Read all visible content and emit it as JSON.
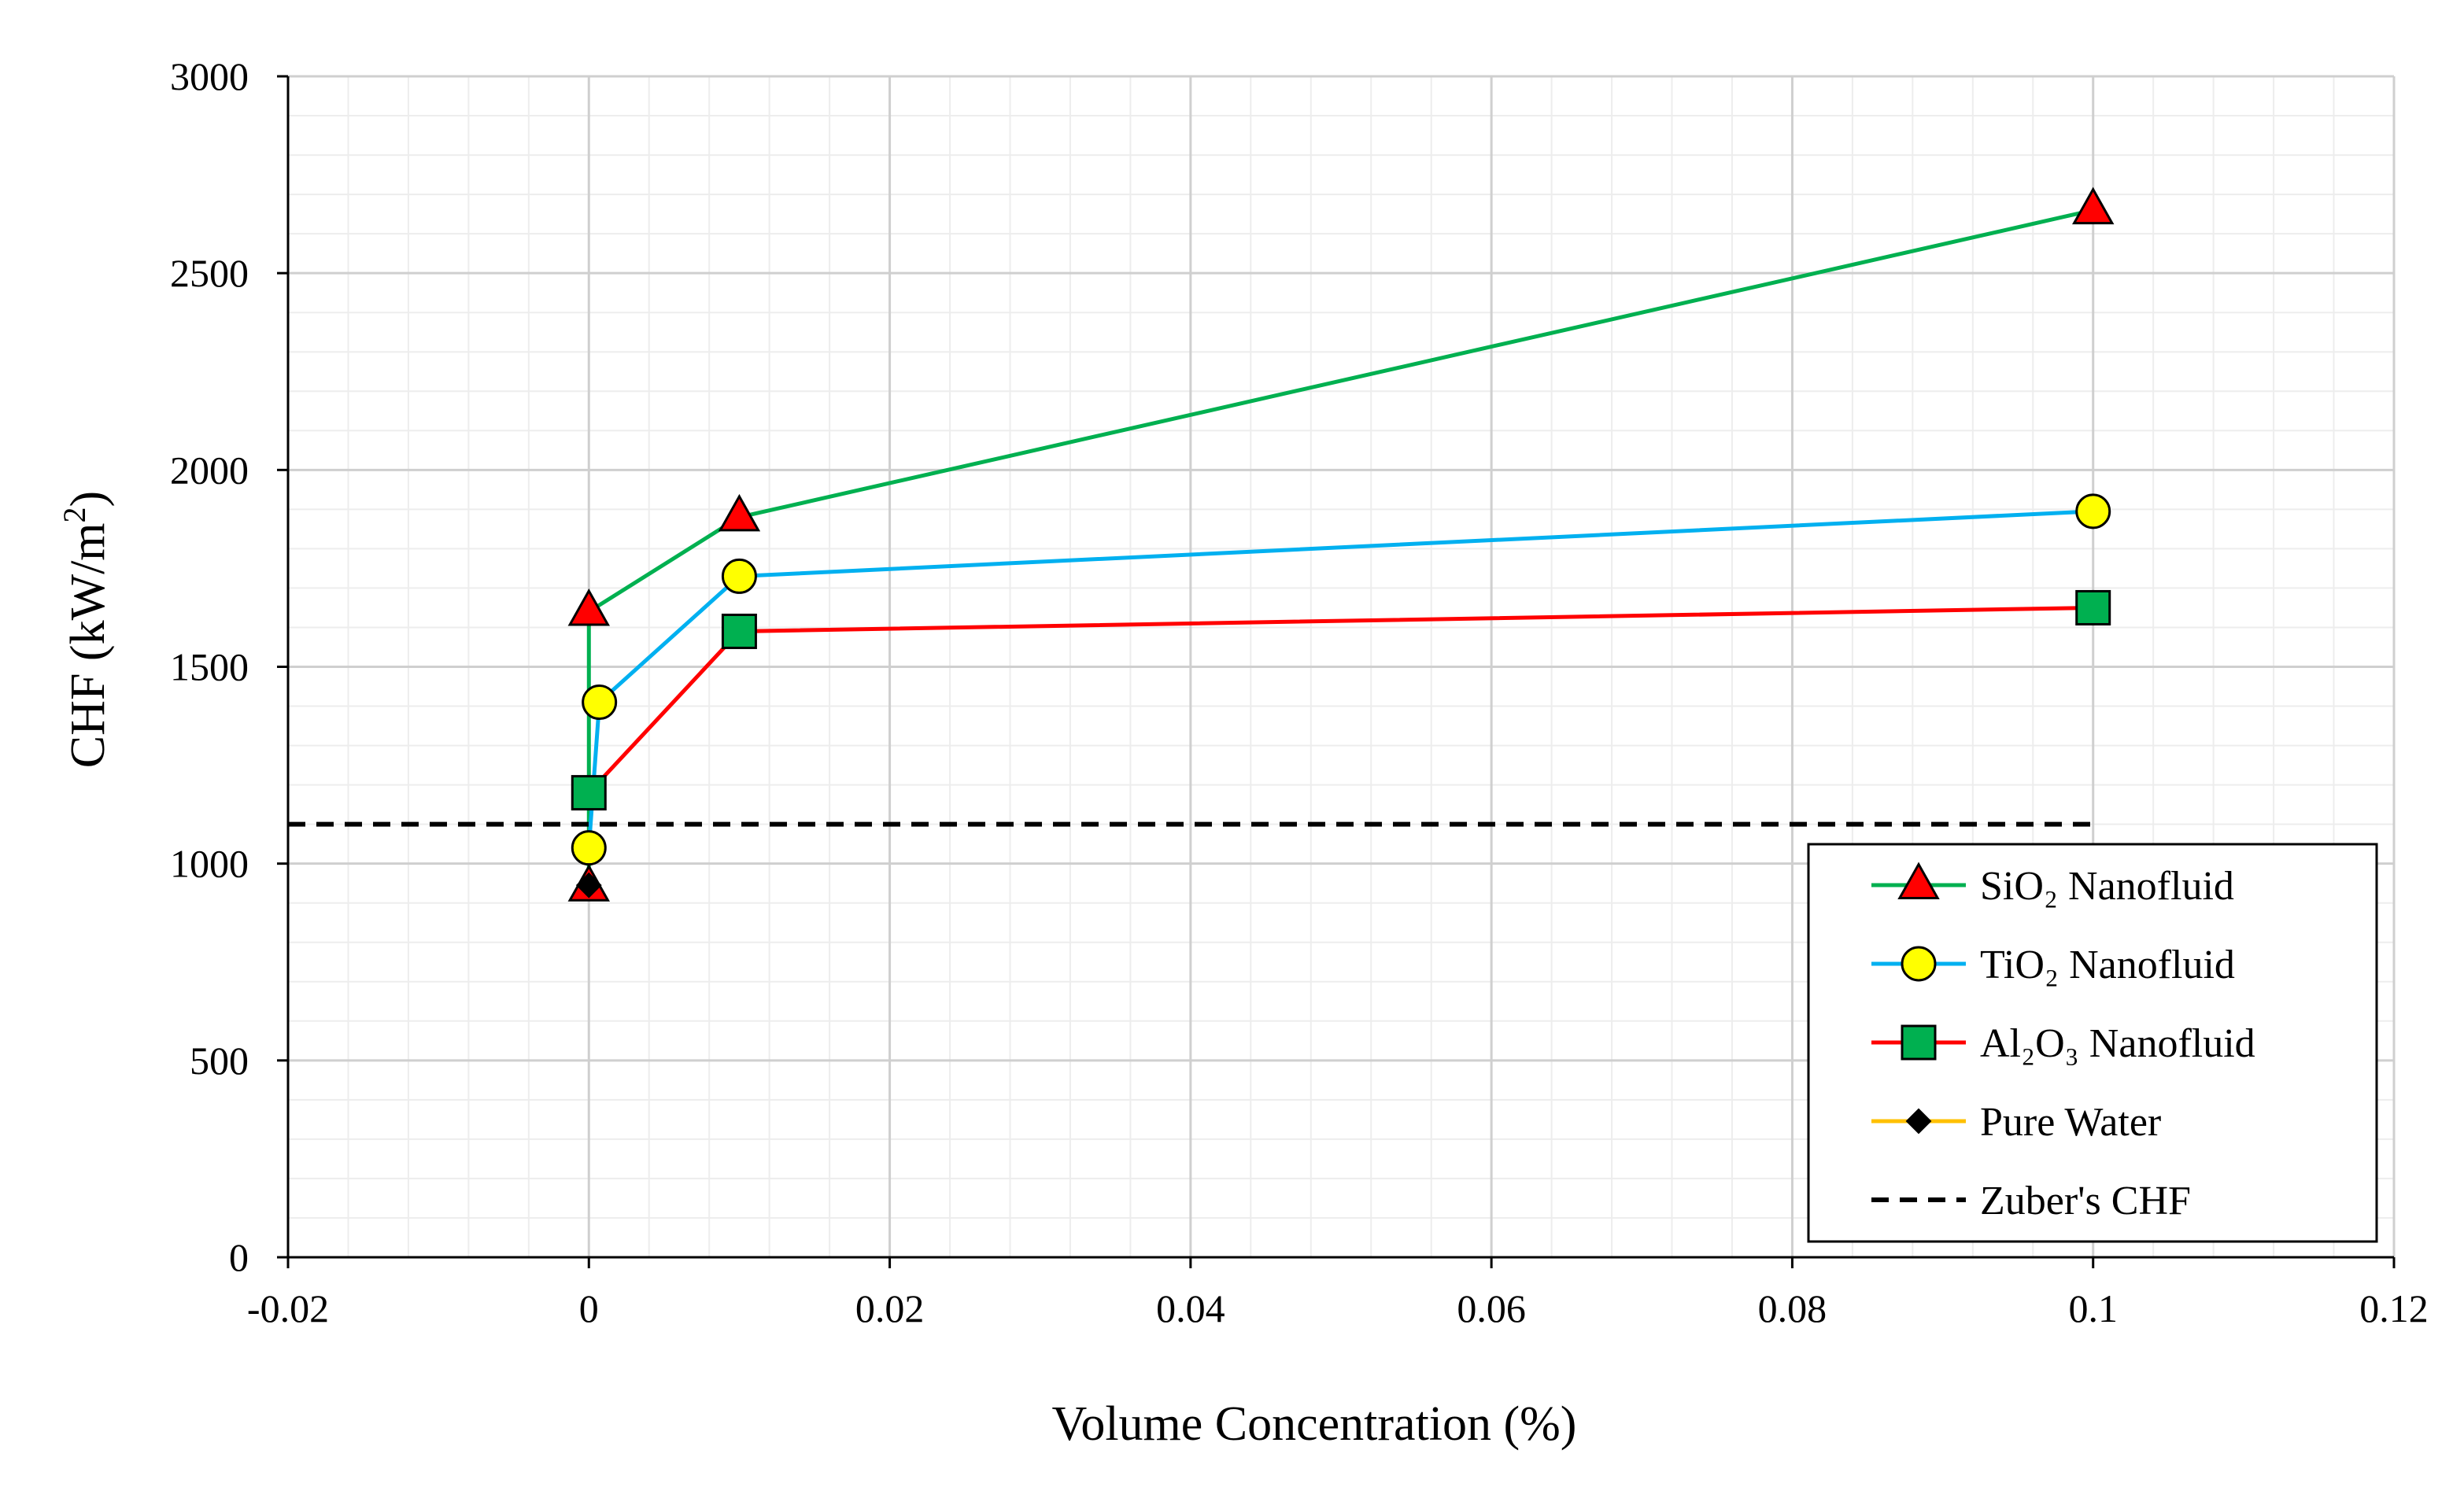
{
  "chart_data": {
    "type": "line",
    "title": "",
    "xlabel": "Volume Concentration (%)",
    "ylabel": "CHF (kW/m²)",
    "xlim": [
      -0.02,
      0.12
    ],
    "ylim": [
      0,
      3000
    ],
    "x_ticks": [
      -0.02,
      0,
      0.02,
      0.04,
      0.06,
      0.08,
      0.1,
      0.12
    ],
    "x_tick_labels": [
      "-0.02",
      "0",
      "0.02",
      "0.04",
      "0.06",
      "0.08",
      "0.1",
      "0.12"
    ],
    "y_ticks": [
      0,
      500,
      1000,
      1500,
      2000,
      2500,
      3000
    ],
    "y_tick_labels": [
      "0",
      "500",
      "1000",
      "1500",
      "2000",
      "2500",
      "3000"
    ],
    "x_minor_step": 0.004,
    "y_minor_step": 100,
    "grid": true,
    "legend_position": "bottom-right",
    "series": [
      {
        "name": "SiO₂ Nanofluid",
        "line_color": "#00B050",
        "marker": "triangle",
        "marker_fill": "#FF0000",
        "x": [
          0,
          0,
          0.01,
          0.1
        ],
        "y": [
          940,
          1640,
          1880,
          2660
        ]
      },
      {
        "name": "TiO₂ Nanofluid",
        "line_color": "#00B0F0",
        "marker": "circle",
        "marker_fill": "#FFFF00",
        "x": [
          0,
          0.0007,
          0.01,
          0.1
        ],
        "y": [
          1040,
          1410,
          1730,
          1895
        ]
      },
      {
        "name": "Al₂O₃ Nanofluid",
        "line_color": "#FF0000",
        "marker": "square",
        "marker_fill": "#00B050",
        "x": [
          0,
          0.01,
          0.1
        ],
        "y": [
          1180,
          1590,
          1650
        ]
      },
      {
        "name": "Pure Water",
        "line_color": "#FFC000",
        "marker": "diamond",
        "marker_fill": "#000000",
        "x": [
          0
        ],
        "y": [
          945
        ]
      },
      {
        "name": "Zuber's CHF",
        "line_color": "#000000",
        "line_style": "dashed",
        "marker": "none",
        "x": [
          -0.02,
          0.1
        ],
        "y": [
          1100,
          1100
        ]
      }
    ]
  }
}
